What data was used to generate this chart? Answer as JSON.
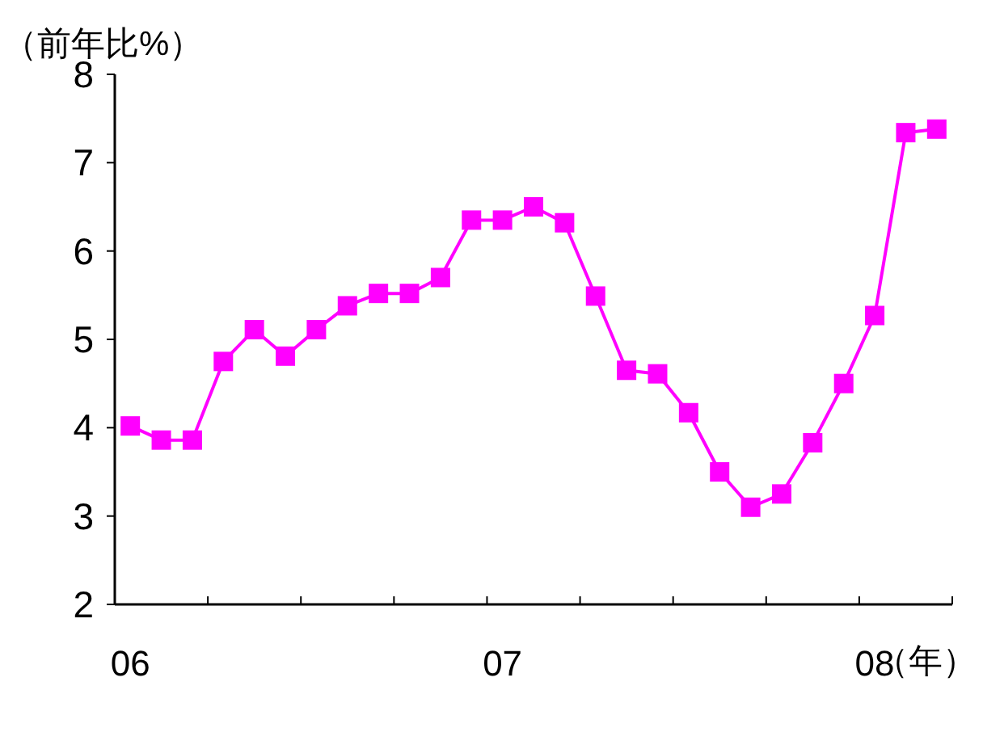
{
  "chart_data": {
    "type": "line",
    "ylabel": "（前年比%）",
    "xlabel": "（年）",
    "categories": [
      "06",
      null,
      null,
      null,
      null,
      null,
      null,
      null,
      null,
      null,
      null,
      null,
      "07",
      null,
      null,
      null,
      null,
      null,
      null,
      null,
      null,
      null,
      null,
      null,
      "08",
      null,
      null
    ],
    "series": [
      {
        "color": "#ff00ff",
        "values": [
          4.02,
          3.86,
          3.86,
          4.75,
          5.11,
          4.81,
          5.11,
          5.38,
          5.52,
          5.52,
          5.7,
          6.35,
          6.35,
          6.5,
          6.32,
          5.49,
          4.65,
          4.61,
          4.17,
          3.5,
          3.1,
          3.25,
          3.83,
          4.5,
          5.27,
          7.34,
          7.38
        ]
      }
    ],
    "ylim": [
      2,
      8
    ],
    "yticks": [
      2,
      3,
      4,
      5,
      6,
      7,
      8
    ],
    "marker": "square",
    "line_style": "solid"
  }
}
